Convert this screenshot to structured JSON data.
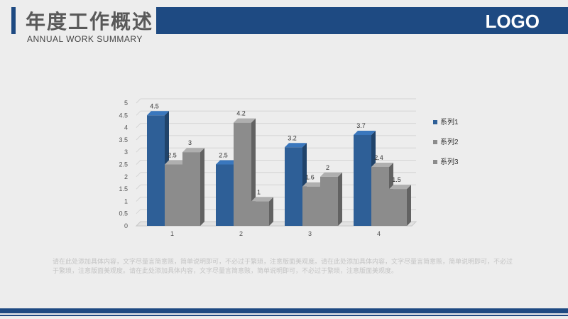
{
  "header": {
    "title": "年度工作概述",
    "subtitle": "ANNUAL  WORK SUMMARY",
    "logo": "LOGO"
  },
  "colors": {
    "brand": "#1e4a82",
    "series1": "#2e5f97",
    "series2": "#8c8c8c",
    "series3": "#8c8c8c"
  },
  "chart_data": {
    "type": "bar",
    "categories": [
      "1",
      "2",
      "3",
      "4"
    ],
    "series": [
      {
        "name": "系列1",
        "values": [
          4.5,
          2.5,
          3.2,
          3.7
        ]
      },
      {
        "name": "系列2",
        "values": [
          2.5,
          4.2,
          1.6,
          2.4
        ]
      },
      {
        "name": "系列3",
        "values": [
          3,
          1,
          2,
          1.5
        ]
      }
    ],
    "y_ticks": [
      "0",
      "0.5",
      "1",
      "1.5",
      "2",
      "2.5",
      "3",
      "3.5",
      "4",
      "4.5",
      "5"
    ],
    "ylim": [
      0,
      5
    ],
    "grid": true,
    "legend": "right",
    "style": "3d-columns"
  },
  "body_text": "请在此处添加具体内容，文字尽量言简意赅，简单说明即可，不必过于繁琐，注意版面美观度。请在此处添加具体内容，文字尽量言简意赅，简单说明即可，不必过于繁琐，注意版面美观度。请在此处添加具体内容，文字尽量言简意赅，简单说明即可，不必过于繁琐，注意版面美观度。"
}
